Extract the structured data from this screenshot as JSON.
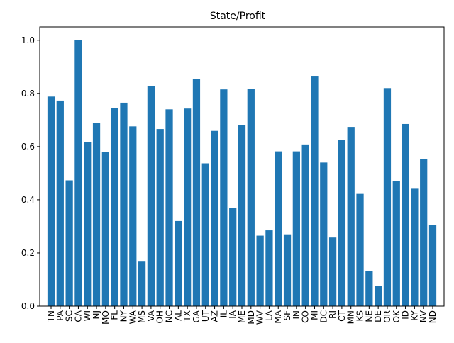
{
  "chart_data": {
    "type": "bar",
    "title": "State/Profit",
    "xlabel": "",
    "ylabel": "",
    "ylim": [
      0,
      1.05
    ],
    "yticks": [
      0.0,
      0.2,
      0.4,
      0.6,
      0.8,
      1.0
    ],
    "ytick_labels": [
      "0.0",
      "0.2",
      "0.4",
      "0.6",
      "0.8",
      "1.0"
    ],
    "grid": false,
    "bar_color": "#1f77b4",
    "categories": [
      "TN",
      "PA",
      "SC",
      "CA",
      "WI",
      "NJ",
      "MO",
      "FL",
      "NY",
      "WA",
      "MS",
      "VA",
      "OH",
      "NC",
      "AL",
      "TX",
      "GA",
      "UT",
      "AZ",
      "IL",
      "IA",
      "ME",
      "MD",
      "WV",
      "LA",
      "MA",
      "SF",
      "IN",
      "CO",
      "MI",
      "DC",
      "RI",
      "CT",
      "MN",
      "KS",
      "NE",
      "DE",
      "OR",
      "OK",
      "ID",
      "KY",
      "NV",
      "ND"
    ],
    "values": [
      0.788,
      0.773,
      0.473,
      1.0,
      0.616,
      0.688,
      0.58,
      0.746,
      0.765,
      0.676,
      0.17,
      0.828,
      0.666,
      0.74,
      0.32,
      0.743,
      0.855,
      0.537,
      0.659,
      0.815,
      0.37,
      0.68,
      0.818,
      0.265,
      0.285,
      0.582,
      0.27,
      0.582,
      0.608,
      0.866,
      0.54,
      0.258,
      0.624,
      0.674,
      0.422,
      0.133,
      0.076,
      0.82,
      0.469,
      0.685,
      0.444,
      0.553,
      0.305
    ]
  }
}
